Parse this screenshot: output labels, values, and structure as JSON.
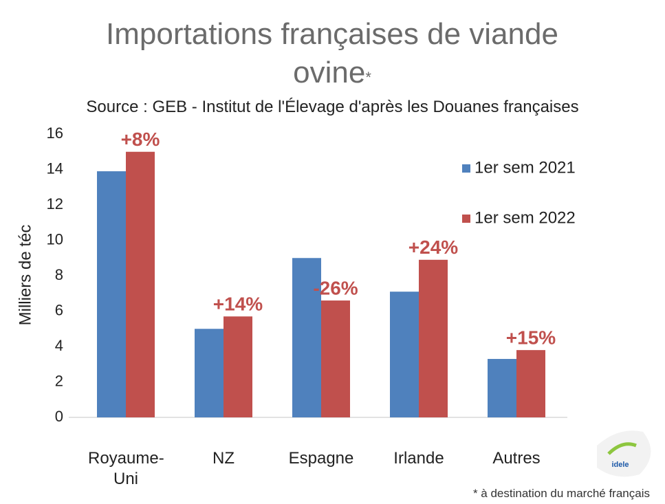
{
  "chart_data": {
    "type": "bar",
    "title": "Importations françaises de viande ovine",
    "title_mark": "*",
    "subtitle": "Source : GEB - Institut de l'Élevage d'après les Douanes françaises",
    "ylabel": "Milliers de téc",
    "categories": [
      "Royaume-Uni",
      "NZ",
      "Espagne",
      "Irlande",
      "Autres"
    ],
    "series": [
      {
        "name": "1er sem 2021",
        "color": "#4f81bd",
        "values": [
          13.9,
          5.0,
          9.0,
          7.1,
          3.3
        ]
      },
      {
        "name": "1er sem 2022",
        "color": "#c0504d",
        "values": [
          15.0,
          5.7,
          6.6,
          8.9,
          3.8
        ]
      }
    ],
    "annotations": [
      "+8%",
      "+14%",
      "-26%",
      "+24%",
      "+15%"
    ],
    "annotation_color": "#c0504d",
    "ylim": [
      0,
      16
    ],
    "yticks": [
      0,
      2,
      4,
      6,
      8,
      10,
      12,
      14,
      16
    ],
    "grid": false,
    "legend": "upper right",
    "footnote": "* à destination du marché français"
  }
}
